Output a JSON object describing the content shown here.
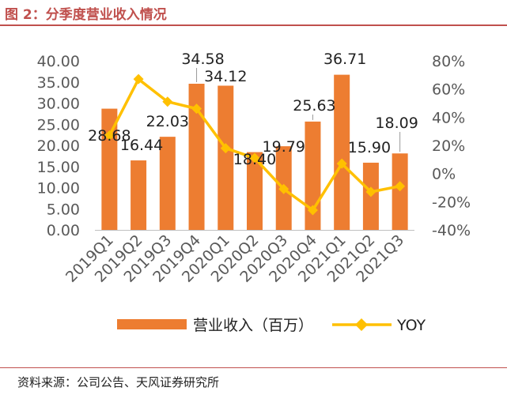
{
  "figure_title": "图 2：分季度营业收入情况",
  "source": "资料来源：公司公告、天风证券研究所",
  "colors": {
    "bar": "#ED7D31",
    "line": "#FFC000",
    "accent": "#c0504d"
  },
  "chart_data": {
    "type": "bar",
    "categories": [
      "2019Q1",
      "2019Q2",
      "2019Q3",
      "2019Q4",
      "2020Q1",
      "2020Q2",
      "2020Q3",
      "2020Q4",
      "2021Q1",
      "2021Q2",
      "2021Q3"
    ],
    "series": [
      {
        "name": "营业收入（百万）",
        "type": "bar",
        "axis": "left",
        "values": [
          28.68,
          16.44,
          22.03,
          34.58,
          34.12,
          18.4,
          19.79,
          25.63,
          36.71,
          15.9,
          18.09
        ],
        "labels": [
          "28.68",
          "16.44",
          "22.03",
          "34.58",
          "34.12",
          "18.40",
          "19.79",
          "25.63",
          "36.71",
          "15.90",
          "18.09"
        ]
      },
      {
        "name": "YOY",
        "type": "line",
        "axis": "right",
        "values": [
          0.27,
          0.67,
          0.51,
          0.46,
          0.18,
          0.11,
          -0.11,
          -0.26,
          0.07,
          -0.13,
          -0.09
        ]
      }
    ],
    "yleft": {
      "min": 0,
      "max": 40,
      "ticks": [
        "0.00",
        "5.00",
        "10.00",
        "15.00",
        "20.00",
        "25.00",
        "30.00",
        "35.00",
        "40.00"
      ]
    },
    "yright": {
      "min": -0.4,
      "max": 0.8,
      "ticks": [
        "-40%",
        "-20%",
        "0%",
        "20%",
        "40%",
        "60%",
        "80%"
      ]
    },
    "grid": false,
    "legend": "bottom"
  }
}
